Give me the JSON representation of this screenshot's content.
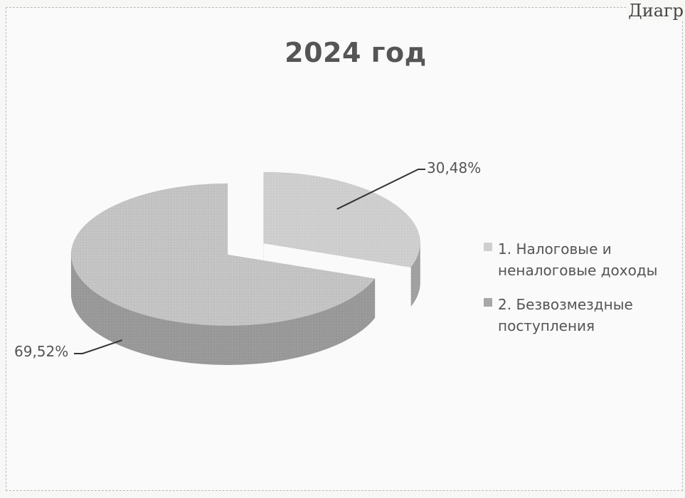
{
  "corner_text": "Диагр",
  "chart_data": {
    "type": "pie",
    "title": "2024 год",
    "style": "3d-exploded",
    "slices": [
      {
        "label": "1. Налоговые и неналоговые доходы",
        "value": 30.48,
        "value_label": "30,48%",
        "color": "#cfcfcf"
      },
      {
        "label": "2. Безвозмездные поступления",
        "value": 69.52,
        "value_label": "69,52%",
        "color": "#c4c4c4"
      }
    ],
    "legend_position": "right"
  }
}
